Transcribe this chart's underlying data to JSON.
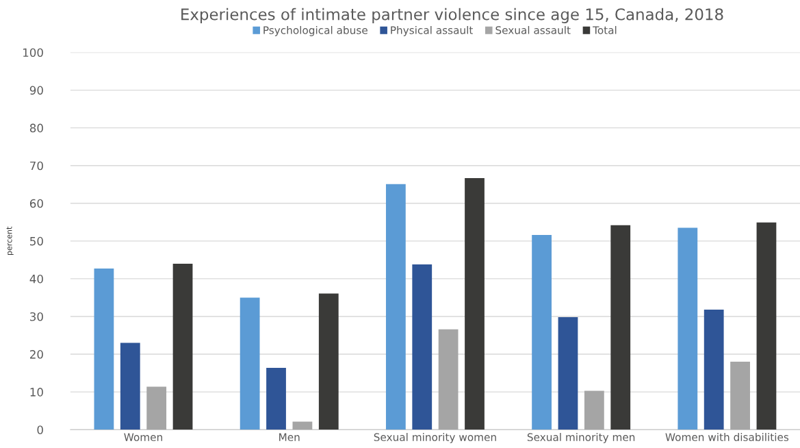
{
  "chart_data": {
    "type": "bar",
    "title": "Experiences of intimate partner violence since age 15, Canada, 2018",
    "ylabel": "percent",
    "categories": [
      "Women",
      "Men",
      "Sexual minority women",
      "Sexual minority men",
      "Women with disabilities"
    ],
    "series": [
      {
        "name": "Psychological abuse",
        "color": "#5b9bd5",
        "values": [
          42.7,
          35,
          65.1,
          51.6,
          53.5
        ]
      },
      {
        "name": "Physical assault",
        "color": "#2f5597",
        "values": [
          23,
          16.4,
          43.8,
          29.8,
          31.8
        ]
      },
      {
        "name": "Sexual assault",
        "color": "#a5a5a5",
        "values": [
          11.4,
          2.1,
          26.6,
          10.3,
          18
        ]
      },
      {
        "name": "Total",
        "color": "#3a3a38",
        "values": [
          44,
          36.1,
          66.7,
          54.2,
          54.9
        ]
      }
    ],
    "ylim": [
      0,
      100
    ],
    "yticks": [
      0,
      10,
      20,
      30,
      40,
      50,
      60,
      70,
      80,
      90,
      100
    ],
    "grid": "y",
    "legend": "top"
  }
}
